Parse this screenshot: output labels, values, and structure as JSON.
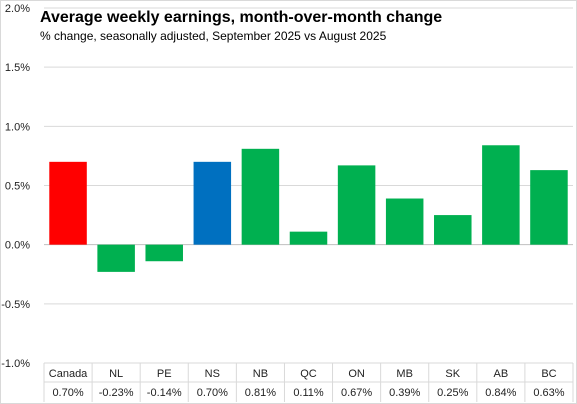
{
  "chart_data": {
    "type": "bar",
    "title": "Average weekly earnings, month-over-month change",
    "subtitle": "% change, seasonally adjusted, September 2025 vs August 2025",
    "xlabel": "",
    "ylabel": "",
    "categories": [
      "Canada",
      "NL",
      "PE",
      "NS",
      "NB",
      "QC",
      "ON",
      "MB",
      "SK",
      "AB",
      "BC"
    ],
    "values": [
      0.7,
      -0.23,
      -0.14,
      0.7,
      0.81,
      0.11,
      0.67,
      0.39,
      0.25,
      0.84,
      0.63
    ],
    "value_labels": [
      "0.70%",
      "-0.23%",
      "-0.14%",
      "0.70%",
      "0.81%",
      "0.11%",
      "0.67%",
      "0.39%",
      "0.25%",
      "0.84%",
      "0.63%"
    ],
    "bar_colors": [
      "#ff0000",
      "#00b050",
      "#00b050",
      "#0070c0",
      "#00b050",
      "#00b050",
      "#00b050",
      "#00b050",
      "#00b050",
      "#00b050",
      "#00b050"
    ],
    "ylim": [
      -1.0,
      2.0
    ],
    "yticks": [
      -1.0,
      -0.5,
      0.0,
      0.5,
      1.0,
      1.5,
      2.0
    ],
    "ytick_labels": [
      "-1.0%",
      "-0.5%",
      "0.0%",
      "0.5%",
      "1.0%",
      "1.5%",
      "2.0%"
    ],
    "grid": true,
    "legend": "none",
    "data_table_below": true
  }
}
